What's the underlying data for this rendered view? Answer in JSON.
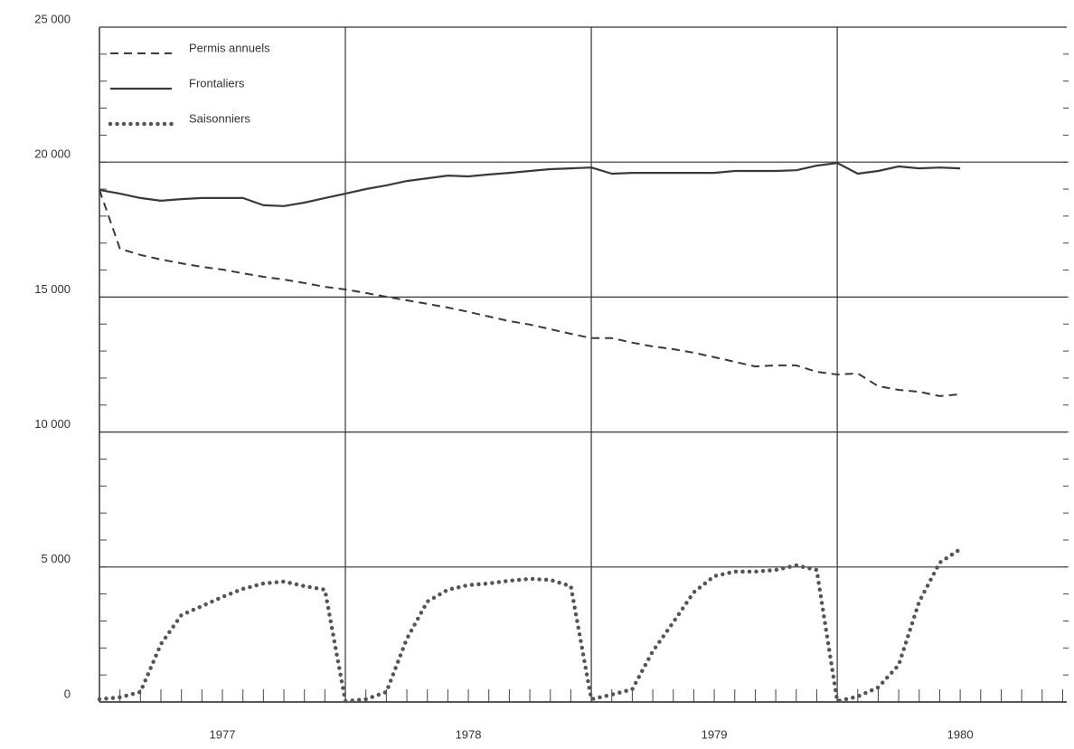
{
  "chart_data": {
    "type": "line",
    "xlim": [
      0,
      47.2
    ],
    "xticks": [
      {
        "value": 6,
        "label": "1977"
      },
      {
        "value": 18,
        "label": "1978"
      },
      {
        "value": 30,
        "label": "1979"
      },
      {
        "value": 42,
        "label": "1980"
      }
    ],
    "xgrid_lines": [
      12,
      24,
      36
    ],
    "ylim": [
      0,
      25000
    ],
    "yticks": [
      0,
      {
        "value": 5000,
        "label": "5 000"
      },
      {
        "value": 10000,
        "label": "10 000"
      },
      {
        "value": 15000,
        "label": "15 000"
      },
      {
        "value": 20000,
        "label": "20 000"
      },
      {
        "value": 25000,
        "label": "25 000"
      }
    ],
    "grid": true,
    "legend": "upper left",
    "x": [
      0,
      1,
      2,
      3,
      4,
      5,
      6,
      7,
      8,
      9,
      10,
      11,
      12,
      13,
      14,
      15,
      16,
      17,
      18,
      19,
      20,
      21,
      22,
      23,
      24,
      25,
      26,
      27,
      28,
      29,
      30,
      31,
      32,
      33,
      34,
      35,
      36,
      37,
      38,
      39,
      40,
      41,
      42
    ],
    "series": [
      {
        "name": "Permis annuels",
        "color": "#3a3a3a",
        "style": "dashed",
        "values": [
          18970,
          16790,
          16560,
          16390,
          16250,
          16120,
          16020,
          15880,
          15750,
          15650,
          15520,
          15380,
          15280,
          15150,
          15010,
          14880,
          14750,
          14610,
          14450,
          14280,
          14110,
          13980,
          13810,
          13640,
          13480,
          13480,
          13310,
          13170,
          13070,
          12940,
          12770,
          12600,
          12430,
          12470,
          12470,
          12230,
          12130,
          12170,
          11700,
          11560,
          11490,
          11330,
          11400
        ]
      },
      {
        "name": "Frontaliers",
        "color": "#3a3a3a",
        "style": "solid",
        "values": [
          18970,
          18830,
          18670,
          18570,
          18630,
          18670,
          18670,
          18670,
          18400,
          18370,
          18500,
          18670,
          18830,
          19000,
          19140,
          19300,
          19400,
          19500,
          19470,
          19540,
          19600,
          19670,
          19740,
          19770,
          19800,
          19570,
          19600,
          19600,
          19600,
          19600,
          19600,
          19670,
          19670,
          19670,
          19700,
          19870,
          19970,
          19570,
          19670,
          19840,
          19770,
          19800,
          19770
        ]
      },
      {
        "name": "Saisonniers",
        "color": "#555555",
        "style": "dotted",
        "values": [
          100,
          170,
          370,
          2140,
          3220,
          3550,
          3890,
          4190,
          4390,
          4460,
          4290,
          4160,
          30,
          100,
          370,
          2340,
          3720,
          4160,
          4330,
          4390,
          4490,
          4560,
          4520,
          4290,
          100,
          270,
          470,
          1880,
          2950,
          4060,
          4660,
          4830,
          4830,
          4890,
          5060,
          4890,
          30,
          200,
          540,
          1370,
          3720,
          5160,
          5660
        ]
      }
    ]
  }
}
